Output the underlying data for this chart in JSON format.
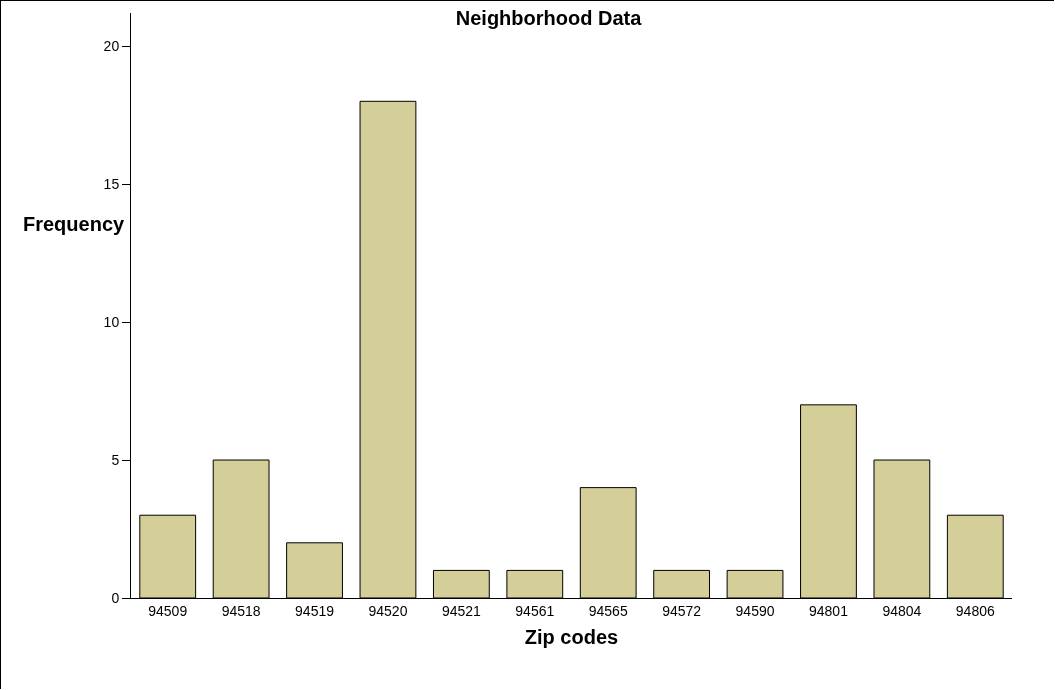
{
  "chart_data": {
    "type": "bar",
    "title": "Neighborhood Data",
    "xlabel": "Zip codes",
    "ylabel": "Frequency",
    "categories": [
      "94509",
      "94518",
      "94519",
      "94520",
      "94521",
      "94561",
      "94565",
      "94572",
      "94590",
      "94801",
      "94804",
      "94806"
    ],
    "values": [
      3,
      5,
      2,
      18,
      1,
      1,
      4,
      1,
      1,
      7,
      5,
      3
    ],
    "color": "#d4cf98",
    "ylim": [
      0,
      21.2
    ],
    "yticks": [
      0,
      5,
      10,
      15,
      20
    ],
    "grid": false
  }
}
